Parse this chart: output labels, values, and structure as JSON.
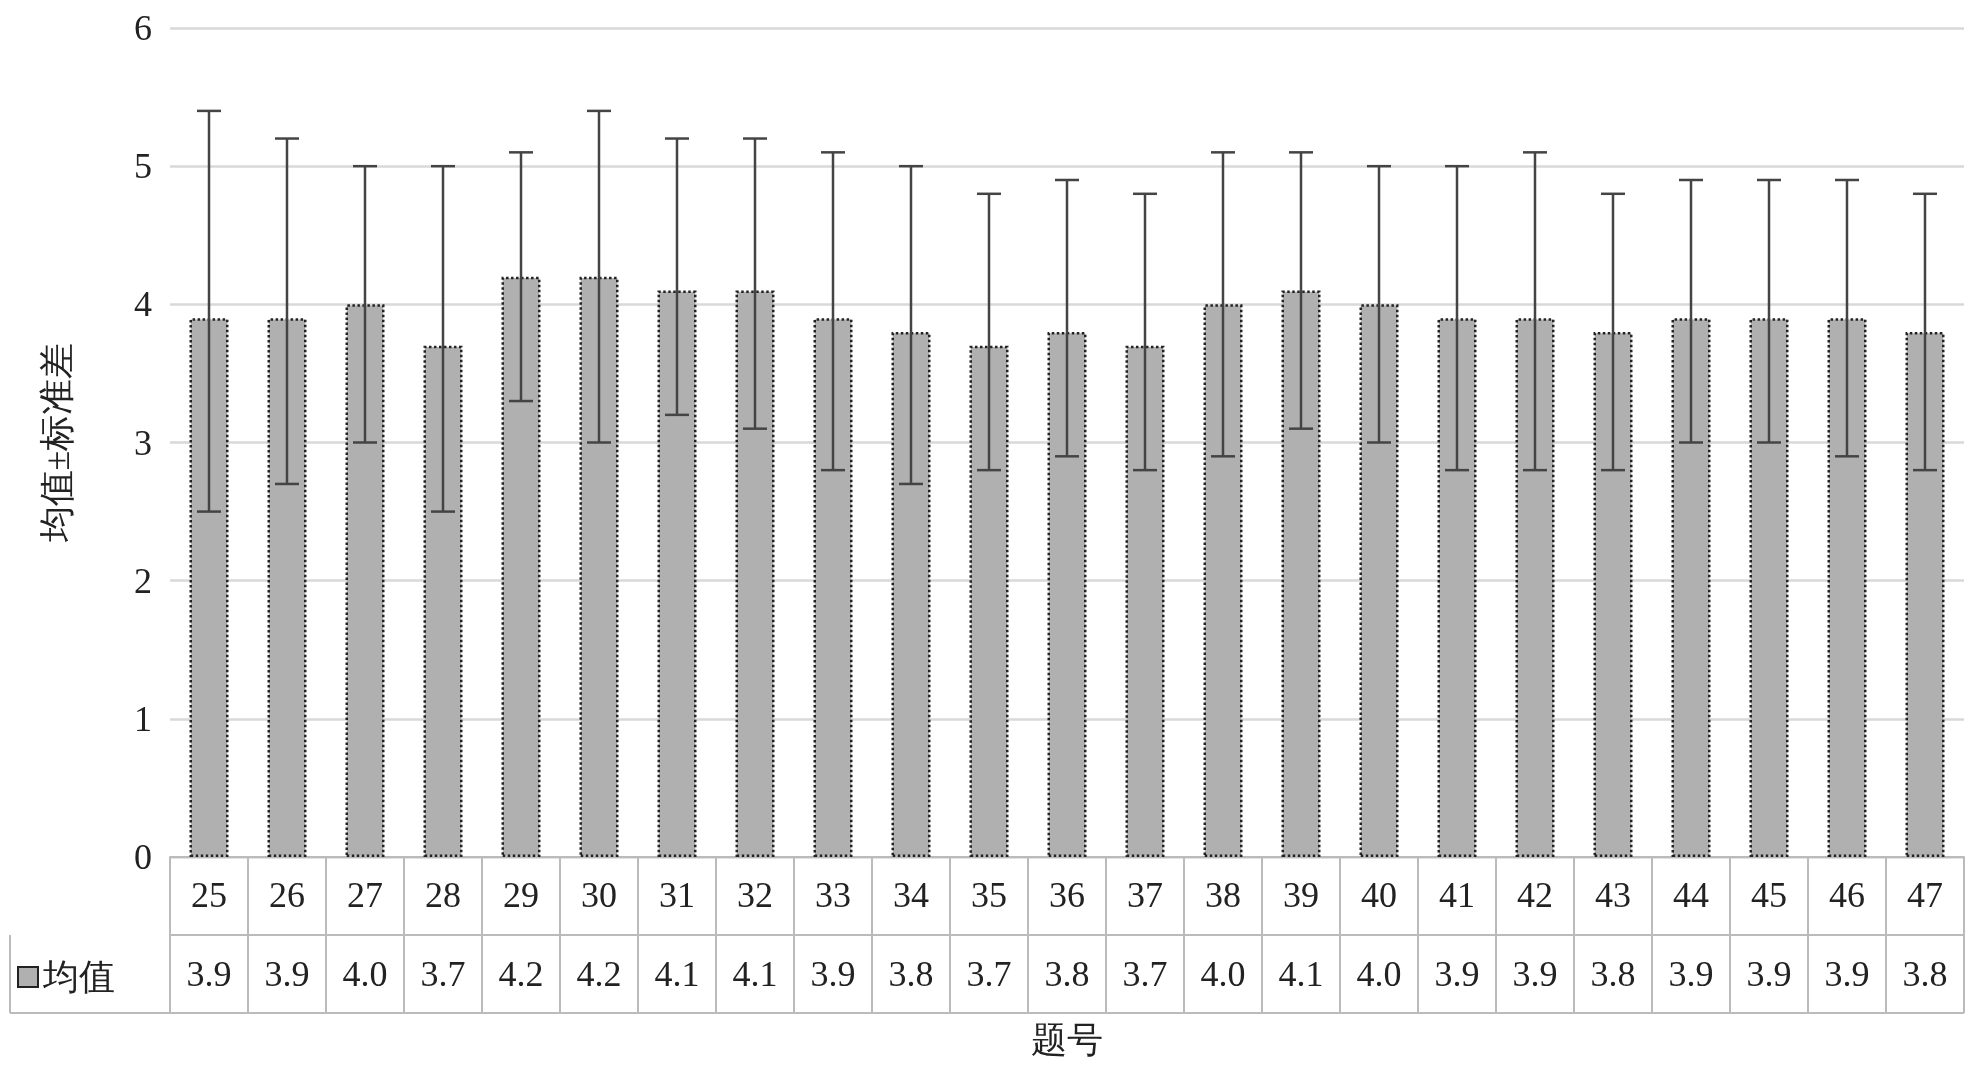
{
  "chart_data": {
    "type": "bar",
    "xlabel": "题号",
    "ylabel": "均值±标准差",
    "categories": [
      "25",
      "26",
      "27",
      "28",
      "29",
      "30",
      "31",
      "32",
      "33",
      "34",
      "35",
      "36",
      "37",
      "38",
      "39",
      "40",
      "41",
      "42",
      "43",
      "44",
      "45",
      "46",
      "47"
    ],
    "series": [
      {
        "name": "均值",
        "color": "#b0b0b0",
        "values": [
          3.9,
          3.9,
          4.0,
          3.7,
          4.2,
          4.2,
          4.1,
          4.1,
          3.9,
          3.8,
          3.7,
          3.8,
          3.7,
          4.0,
          4.1,
          4.0,
          3.9,
          3.9,
          3.8,
          3.9,
          3.9,
          3.9,
          3.8
        ],
        "value_labels": [
          "3.9",
          "3.9",
          "4.0",
          "3.7",
          "4.2",
          "4.2",
          "4.1",
          "4.1",
          "3.9",
          "3.8",
          "3.7",
          "3.8",
          "3.7",
          "4.0",
          "4.1",
          "4.0",
          "3.9",
          "3.9",
          "3.8",
          "3.9",
          "3.9",
          "3.9",
          "3.8"
        ],
        "errors": [
          [
            2.5,
            5.4
          ],
          [
            2.7,
            5.2
          ],
          [
            3.0,
            5.0
          ],
          [
            2.5,
            5.0
          ],
          [
            3.3,
            5.1
          ],
          [
            3.0,
            5.4
          ],
          [
            3.2,
            5.2
          ],
          [
            3.1,
            5.2
          ],
          [
            2.8,
            5.1
          ],
          [
            2.7,
            5.0
          ],
          [
            2.8,
            4.8
          ],
          [
            2.9,
            4.9
          ],
          [
            2.8,
            4.8
          ],
          [
            2.9,
            5.1
          ],
          [
            3.1,
            5.1
          ],
          [
            3.0,
            5.0
          ],
          [
            2.8,
            5.0
          ],
          [
            2.8,
            5.1
          ],
          [
            2.8,
            4.8
          ],
          [
            3.0,
            4.9
          ],
          [
            3.0,
            4.9
          ],
          [
            2.9,
            4.9
          ],
          [
            2.8,
            4.8
          ]
        ]
      }
    ],
    "ylim": [
      0,
      6
    ],
    "yticks": [
      0,
      1,
      2,
      3,
      4,
      5,
      6
    ],
    "grid": "y",
    "legend": "bottom left"
  }
}
